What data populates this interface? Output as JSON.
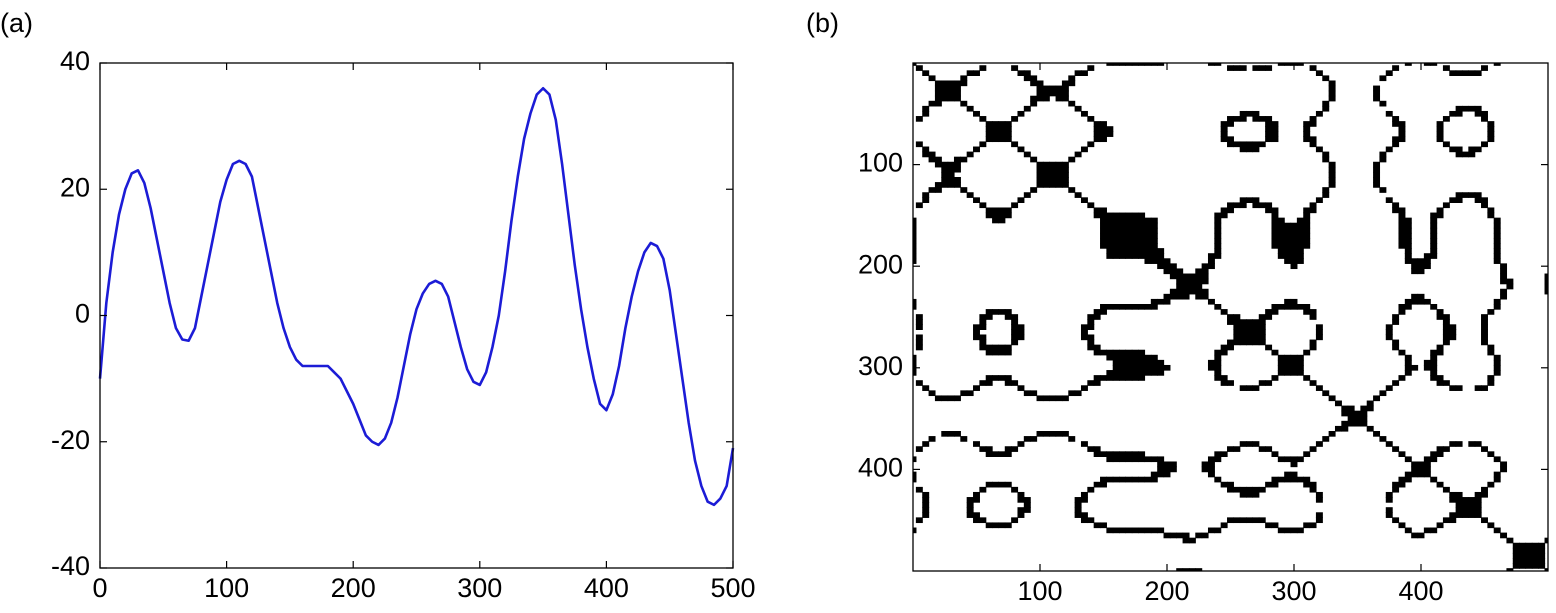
{
  "chart_data": [
    {
      "type": "line",
      "title": "(a)",
      "x": [
        0,
        5,
        10,
        15,
        20,
        25,
        30,
        35,
        40,
        45,
        50,
        55,
        60,
        65,
        70,
        75,
        80,
        85,
        90,
        95,
        100,
        105,
        110,
        115,
        120,
        125,
        130,
        135,
        140,
        145,
        150,
        155,
        160,
        165,
        170,
        175,
        180,
        185,
        190,
        195,
        200,
        205,
        210,
        215,
        220,
        225,
        230,
        235,
        240,
        245,
        250,
        255,
        260,
        265,
        270,
        275,
        280,
        285,
        290,
        295,
        300,
        305,
        310,
        315,
        320,
        325,
        330,
        335,
        340,
        345,
        350,
        355,
        360,
        365,
        370,
        375,
        380,
        385,
        390,
        395,
        400,
        405,
        410,
        415,
        420,
        425,
        430,
        435,
        440,
        445,
        450,
        455,
        460,
        465,
        470,
        475,
        480,
        485,
        490,
        495,
        500
      ],
      "series": [
        {
          "color": "#1c1cd6",
          "values": [
            -10,
            2,
            10,
            16,
            20,
            22.5,
            23,
            21,
            17,
            12,
            7,
            2,
            -2,
            -3.8,
            -4,
            -2,
            3,
            8,
            13,
            18,
            21.5,
            24,
            24.5,
            24,
            22,
            17,
            12,
            7,
            2,
            -2,
            -5,
            -7,
            -8,
            -8,
            -8,
            -8,
            -8,
            -9,
            -10,
            -12,
            -14,
            -16.5,
            -19,
            -20,
            -20.5,
            -19.5,
            -17,
            -13,
            -8,
            -3,
            1,
            3.5,
            5,
            5.5,
            5,
            3,
            -1,
            -5,
            -8.5,
            -10.5,
            -11,
            -9,
            -5,
            0,
            7,
            15,
            22,
            28,
            32,
            35,
            36,
            35,
            31,
            24,
            16,
            8,
            1,
            -5,
            -10,
            -14,
            -15,
            -12.5,
            -8,
            -2,
            3,
            7,
            10,
            11.5,
            11,
            9,
            4,
            -3,
            -10,
            -17,
            -23,
            -27,
            -29.5,
            -30,
            -29,
            -27,
            -21
          ]
        }
      ],
      "xlim": [
        0,
        500
      ],
      "ylim": [
        -40,
        40
      ],
      "xticks": [
        0,
        100,
        200,
        300,
        400,
        500
      ],
      "yticks": [
        -40,
        -20,
        0,
        20,
        40
      ]
    },
    {
      "type": "recurrence",
      "title": "(b)",
      "color": "#000000",
      "xlim": [
        0,
        500
      ],
      "ylim": [
        0,
        500
      ],
      "yreverse": true,
      "xticks": [
        100,
        200,
        300,
        400
      ],
      "yticks": [
        100,
        200,
        300,
        400
      ]
    }
  ]
}
